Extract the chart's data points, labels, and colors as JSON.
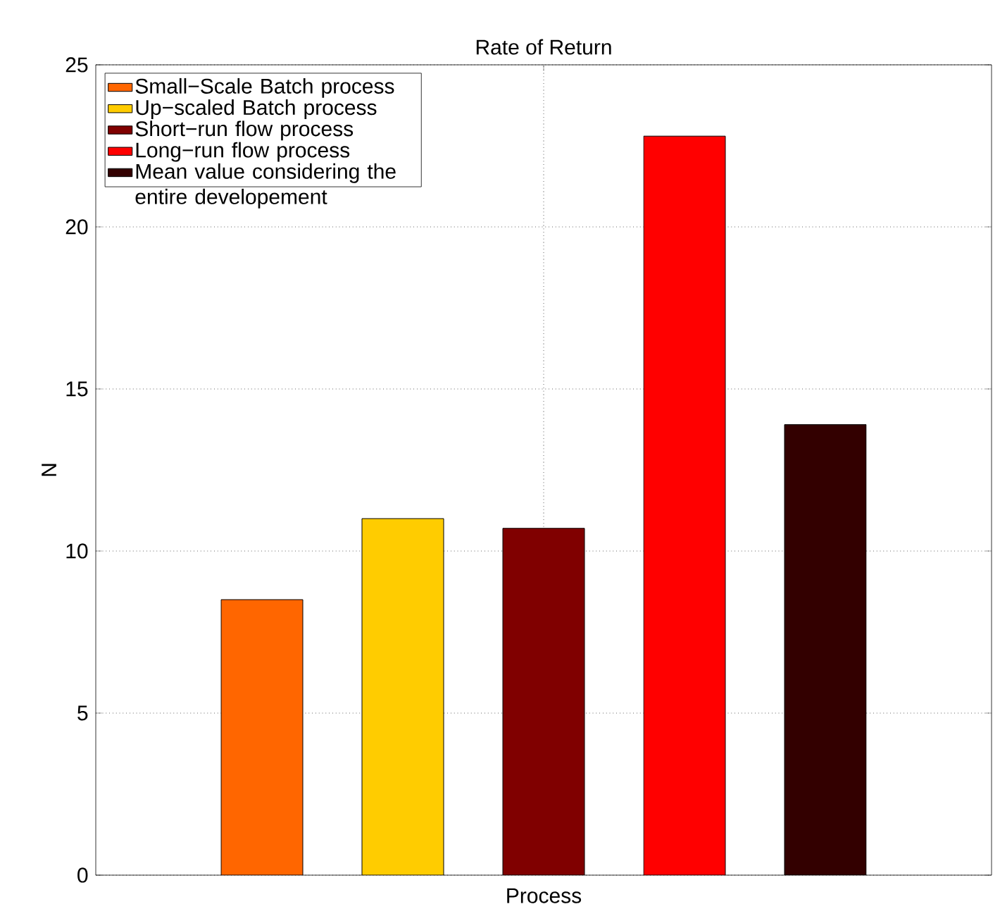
{
  "chart_data": {
    "type": "bar",
    "title": "Rate of Return",
    "xlabel": "Process",
    "ylabel": "N",
    "categories": [
      null
    ],
    "series": [
      {
        "name": "Small−Scale Batch process",
        "color": "#ff6600",
        "values": [
          8.5
        ]
      },
      {
        "name": "Up−scaled Batch process",
        "color": "#ffcc00",
        "values": [
          11.0
        ]
      },
      {
        "name": "Short−run flow process",
        "color": "#800000",
        "values": [
          10.7
        ]
      },
      {
        "name": "Long−run flow process",
        "color": "#ff0000",
        "values": [
          22.8
        ]
      },
      {
        "name": "Mean value considering the entire developement",
        "color": "#330000",
        "values": [
          13.9
        ]
      }
    ],
    "ylim": [
      0,
      25
    ],
    "yticks": [
      0,
      5,
      10,
      15,
      20,
      25
    ],
    "grid": true,
    "legend": "top left"
  }
}
